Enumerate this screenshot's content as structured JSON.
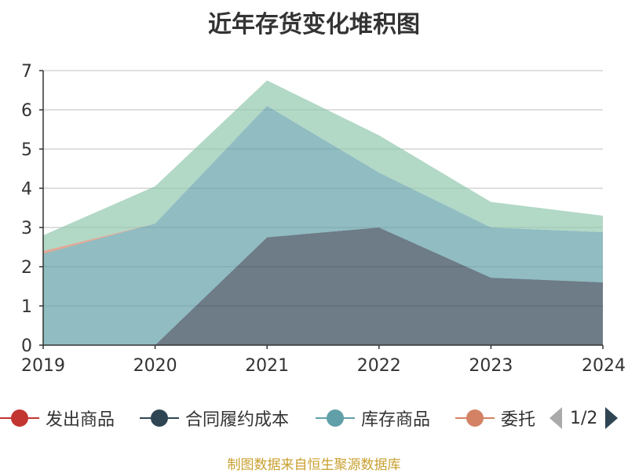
{
  "chart_data": {
    "type": "area",
    "title": "近年存货变化堆积图",
    "stacked": true,
    "categories": [
      "2019",
      "2020",
      "2021",
      "2022",
      "2023",
      "2024"
    ],
    "ylim": [
      0,
      7
    ],
    "yticks": [
      "0",
      "1",
      "2",
      "3",
      "4",
      "5",
      "6",
      "7"
    ],
    "grid": true,
    "legend_position": "bottom",
    "series": [
      {
        "name": "发出商品",
        "color": "#c23531",
        "values": [
          0,
          0,
          0,
          0,
          0,
          0
        ]
      },
      {
        "name": "合同履约成本",
        "color": "#2f4554",
        "values": [
          0,
          0,
          2.75,
          3.0,
          1.72,
          1.6
        ]
      },
      {
        "name": "库存商品",
        "color": "#61a0a8",
        "values": [
          2.33,
          3.1,
          3.35,
          1.4,
          1.28,
          1.28
        ]
      },
      {
        "name": "委托",
        "color": "#d48265",
        "values": [
          0.07,
          0,
          0,
          0,
          0,
          0
        ]
      },
      {
        "name": "",
        "color": "#91c7ae",
        "values": [
          0.4,
          0.95,
          0.65,
          0.95,
          0.65,
          0.42
        ]
      }
    ]
  },
  "legend": {
    "items": [
      "发出商品",
      "合同履约成本",
      "库存商品",
      "委托"
    ],
    "page": "1/2"
  },
  "source": "制图数据来自恒生聚源数据库"
}
